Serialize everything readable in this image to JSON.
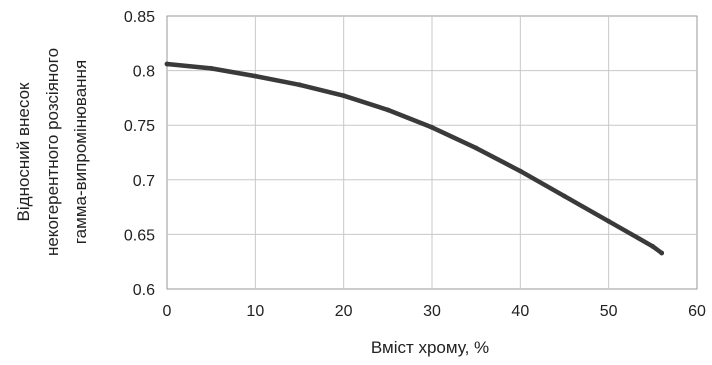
{
  "chart_data": {
    "type": "line",
    "xlabel": "Вміст хрому, %",
    "ylabel_lines": [
      "Відносний внесок",
      "некогерентного розсіяного",
      "гамма-випромінювання"
    ],
    "xlim": [
      0,
      60
    ],
    "ylim": [
      0.6,
      0.85
    ],
    "xticks": [
      0,
      10,
      20,
      30,
      40,
      50,
      60
    ],
    "yticks": [
      0.6,
      0.65,
      0.7,
      0.75,
      0.8,
      0.85
    ],
    "grid": true,
    "legend": "none",
    "series": [
      {
        "color": "#3a3a3a",
        "x": [
          0,
          5,
          10,
          15,
          20,
          25,
          30,
          35,
          40,
          45,
          50,
          55,
          56
        ],
        "y": [
          0.806,
          0.802,
          0.795,
          0.787,
          0.777,
          0.764,
          0.748,
          0.729,
          0.708,
          0.685,
          0.662,
          0.639,
          0.633
        ]
      }
    ]
  }
}
